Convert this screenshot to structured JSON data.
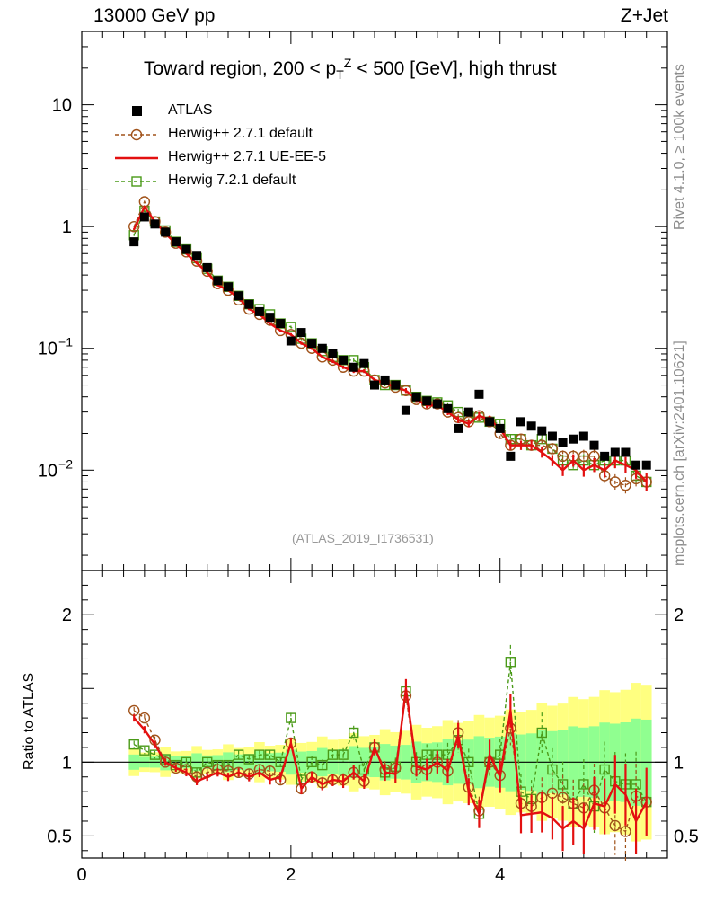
{
  "header": {
    "left": "13000 GeV pp",
    "right": "Z+Jet"
  },
  "title": {
    "pre": "Toward region, 200 < p",
    "sub": "T",
    "sup": "Z",
    "post": " < 500 [GeV], high thrust"
  },
  "watermark": "(ATLAS_2019_I1736531)",
  "side_labels": {
    "rivet": "Rivet 4.1.0, ≥ 100k events",
    "mcplots": "mcplots.cern.ch [arXiv:2401.10621]"
  },
  "ratio_ylabel": "Ratio to ATLAS",
  "legend": [
    {
      "label": "ATLAS",
      "color": "#000000",
      "style": "square"
    },
    {
      "label": "Herwig++ 2.7.1 default",
      "color": "#a0521a",
      "style": "circle-dashed"
    },
    {
      "label": "Herwig++ 2.7.1 UE-EE-5",
      "color": "#e31010",
      "style": "solid"
    },
    {
      "label": "Herwig 7.2.1 default",
      "color": "#4a9a18",
      "style": "open-square-dashed"
    }
  ],
  "chart_data": {
    "type": "scatter",
    "xlim": [
      0,
      5.6
    ],
    "main": {
      "ylog": true,
      "ylim": [
        0.0015,
        40
      ],
      "yticks": [
        {
          "value": 10,
          "label": "10"
        },
        {
          "value": 1,
          "label": "1"
        },
        {
          "value": 0.1,
          "label": "10",
          "exp": "−1"
        },
        {
          "value": 0.01,
          "label": "10",
          "exp": "−2"
        }
      ]
    },
    "ratio": {
      "ylim": [
        0.35,
        2.3
      ],
      "yticks": [
        {
          "value": 2,
          "label": "2"
        },
        {
          "value": 1,
          "label": "1"
        },
        {
          "value": 0.5,
          "label": "0.5"
        }
      ]
    },
    "xticks": [
      {
        "value": 0,
        "label": "0"
      },
      {
        "value": 2,
        "label": "2"
      },
      {
        "value": 4,
        "label": "4"
      }
    ],
    "x": [
      0.5,
      0.6,
      0.7,
      0.8,
      0.9,
      1.0,
      1.1,
      1.2,
      1.3,
      1.4,
      1.5,
      1.6,
      1.7,
      1.8,
      1.9,
      2.0,
      2.1,
      2.2,
      2.3,
      2.4,
      2.5,
      2.6,
      2.7,
      2.8,
      2.9,
      3.0,
      3.1,
      3.2,
      3.3,
      3.4,
      3.5,
      3.6,
      3.7,
      3.8,
      3.9,
      4.0,
      4.1,
      4.2,
      4.3,
      4.4,
      4.5,
      4.6,
      4.7,
      4.8,
      4.9,
      5.0,
      5.1,
      5.2,
      5.3,
      5.4
    ],
    "atlas": [
      0.75,
      1.2,
      1.05,
      0.9,
      0.75,
      0.65,
      0.58,
      0.46,
      0.36,
      0.32,
      0.27,
      0.23,
      0.2,
      0.18,
      0.16,
      0.115,
      0.135,
      0.11,
      0.1,
      0.09,
      0.08,
      0.07,
      0.075,
      0.05,
      0.055,
      0.05,
      0.031,
      0.04,
      0.037,
      0.035,
      0.032,
      0.022,
      0.03,
      0.042,
      0.025,
      0.022,
      0.013,
      0.025,
      0.023,
      0.021,
      0.019,
      0.017,
      0.018,
      0.019,
      0.016,
      0.013,
      0.014,
      0.014,
      0.011,
      0.011
    ],
    "series": [
      {
        "name": "Herwig++ 2.7.1 default",
        "values": [
          1.0,
          1.6,
          1.1,
          0.9,
          0.73,
          0.62,
          0.52,
          0.43,
          0.34,
          0.3,
          0.25,
          0.21,
          0.19,
          0.17,
          0.14,
          0.13,
          0.11,
          0.1,
          0.085,
          0.08,
          0.07,
          0.065,
          0.065,
          0.055,
          0.052,
          0.048,
          0.045,
          0.038,
          0.035,
          0.035,
          0.03,
          0.027,
          0.025,
          0.028,
          0.025,
          0.02,
          0.016,
          0.018,
          0.016,
          0.016,
          0.015,
          0.013,
          0.013,
          0.013,
          0.013,
          0.009,
          0.008,
          0.0075,
          0.0085,
          0.008
        ],
        "ratio": [
          1.35,
          1.3,
          1.15,
          1.0,
          0.96,
          0.95,
          0.9,
          0.93,
          0.95,
          0.94,
          0.93,
          0.92,
          0.95,
          0.94,
          0.88,
          1.13,
          0.82,
          0.9,
          0.86,
          0.88,
          0.88,
          0.93,
          0.87,
          1.1,
          0.95,
          0.96,
          1.45,
          0.95,
          0.95,
          1.0,
          0.94,
          1.2,
          0.83,
          0.67,
          1.0,
          0.91,
          1.23,
          0.72,
          0.7,
          0.76,
          0.79,
          0.76,
          0.72,
          0.69,
          0.81,
          0.69,
          0.57,
          0.53,
          0.77,
          0.73
        ]
      },
      {
        "name": "Herwig++ 2.7.1 UE-EE-5",
        "values": [
          0.95,
          1.45,
          1.1,
          0.88,
          0.72,
          0.6,
          0.5,
          0.42,
          0.33,
          0.3,
          0.26,
          0.21,
          0.19,
          0.16,
          0.14,
          0.13,
          0.11,
          0.1,
          0.085,
          0.078,
          0.07,
          0.065,
          0.065,
          0.055,
          0.052,
          0.048,
          0.045,
          0.038,
          0.034,
          0.034,
          0.03,
          0.026,
          0.024,
          0.028,
          0.026,
          0.022,
          0.016,
          0.016,
          0.016,
          0.014,
          0.012,
          0.01,
          0.012,
          0.01,
          0.011,
          0.01,
          0.012,
          0.011,
          0.01,
          0.008
        ],
        "ratio": [
          1.3,
          1.22,
          1.12,
          1.0,
          0.96,
          0.93,
          0.87,
          0.9,
          0.93,
          0.9,
          0.93,
          0.9,
          0.93,
          0.88,
          0.9,
          1.13,
          0.82,
          0.9,
          0.85,
          0.88,
          0.87,
          0.93,
          0.87,
          1.1,
          0.93,
          0.92,
          1.5,
          0.97,
          0.95,
          1.0,
          0.94,
          1.18,
          0.8,
          0.65,
          1.05,
          0.9,
          1.35,
          0.64,
          0.65,
          0.66,
          0.62,
          0.55,
          0.6,
          0.55,
          0.72,
          0.7,
          0.85,
          0.78,
          0.6,
          0.73
        ]
      },
      {
        "name": "Herwig 7.2.1 default",
        "values": [
          0.85,
          1.35,
          1.1,
          0.93,
          0.75,
          0.65,
          0.55,
          0.45,
          0.36,
          0.32,
          0.27,
          0.23,
          0.21,
          0.19,
          0.16,
          0.15,
          0.12,
          0.11,
          0.095,
          0.085,
          0.08,
          0.08,
          0.07,
          0.055,
          0.05,
          0.05,
          0.045,
          0.04,
          0.037,
          0.036,
          0.034,
          0.03,
          0.028,
          0.027,
          0.025,
          0.024,
          0.018,
          0.018,
          0.016,
          0.018,
          0.015,
          0.012,
          0.011,
          0.012,
          0.011,
          0.012,
          0.012,
          0.012,
          0.009,
          0.008
        ],
        "ratio": [
          1.12,
          1.08,
          1.05,
          1.02,
          0.98,
          1.0,
          0.93,
          1.0,
          0.98,
          0.98,
          1.05,
          1.02,
          1.05,
          1.05,
          1.0,
          1.3,
          0.88,
          1.0,
          0.98,
          1.05,
          1.05,
          1.2,
          0.95,
          1.1,
          0.93,
          0.97,
          1.48,
          1.0,
          1.05,
          1.05,
          1.05,
          1.15,
          1.0,
          0.65,
          1.0,
          1.05,
          1.68,
          0.8,
          0.75,
          1.2,
          0.95,
          0.85,
          0.72,
          0.85,
          0.7,
          0.95,
          0.87,
          0.85,
          0.85,
          0.73
        ]
      }
    ]
  }
}
